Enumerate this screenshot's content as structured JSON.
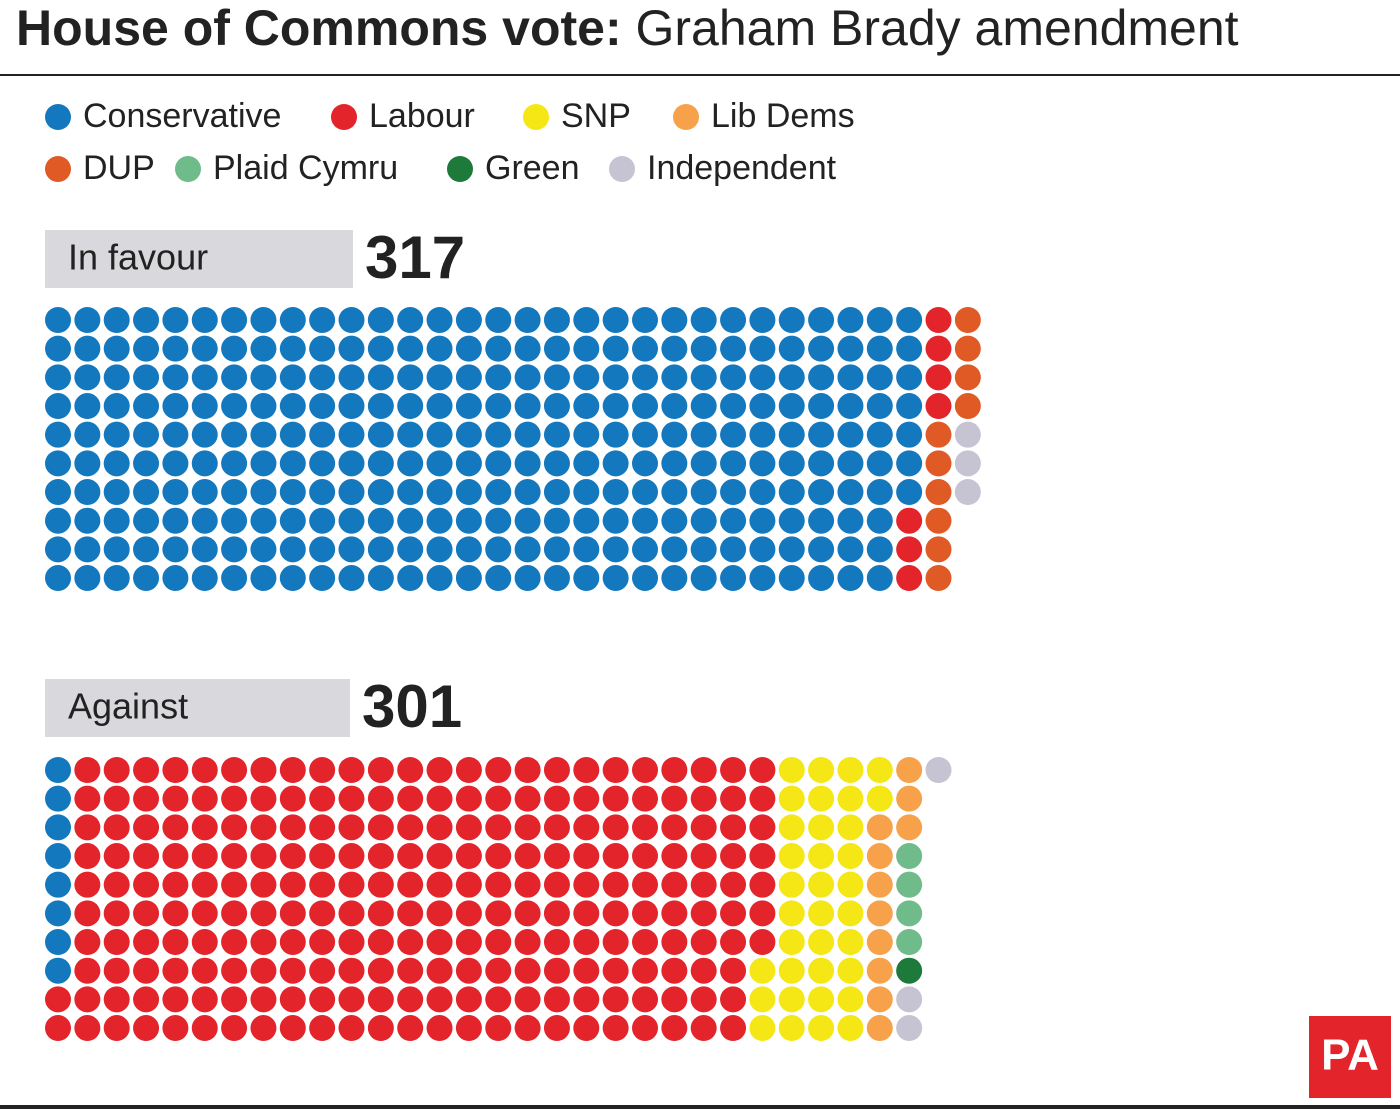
{
  "chart_data": {
    "type": "waffle",
    "title": "House of Commons vote:",
    "subtitle": "Graham Brady amendment",
    "categories": [
      "In favour",
      "Against"
    ],
    "totals": [
      317,
      301
    ],
    "rows": 10,
    "series": [
      {
        "name": "Conservative",
        "color": "#1478be",
        "values": [
          297,
          8
        ]
      },
      {
        "name": "Labour",
        "color": "#e3242b",
        "values": [
          7,
          239
        ]
      },
      {
        "name": "SNP",
        "color": "#f5e615",
        "values": [
          0,
          35
        ]
      },
      {
        "name": "Lib Dems",
        "color": "#f7a24a",
        "values": [
          0,
          11
        ]
      },
      {
        "name": "DUP",
        "color": "#e05a25",
        "values": [
          10,
          0
        ]
      },
      {
        "name": "Plaid Cymru",
        "color": "#6fbb8a",
        "values": [
          0,
          4
        ]
      },
      {
        "name": "Green",
        "color": "#1d7a3a",
        "values": [
          0,
          1
        ]
      },
      {
        "name": "Independent",
        "color": "#c6c4d2",
        "values": [
          3,
          3
        ]
      }
    ],
    "logo": "PA"
  }
}
